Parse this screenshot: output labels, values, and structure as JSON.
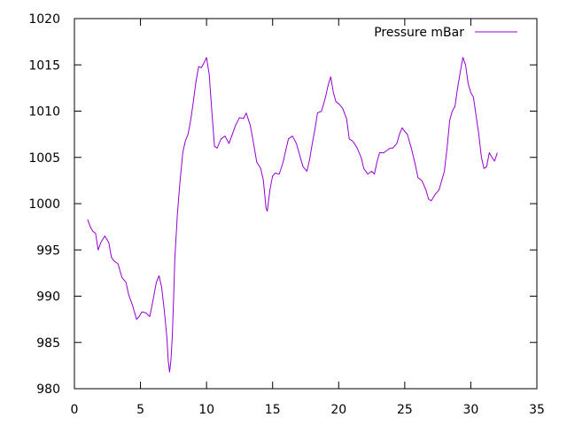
{
  "chart_data": {
    "type": "line",
    "title": "",
    "xlabel": "",
    "ylabel": "",
    "xlim": [
      0,
      35
    ],
    "ylim": [
      980,
      1020
    ],
    "x_ticks": [
      0,
      5,
      10,
      15,
      20,
      25,
      30,
      35
    ],
    "y_ticks": [
      980,
      985,
      990,
      995,
      1000,
      1005,
      1010,
      1015,
      1020
    ],
    "x_tick_labels": [
      "0",
      "5",
      "10",
      "15",
      "20",
      "25",
      "30",
      "35"
    ],
    "y_tick_labels": [
      "980",
      "985",
      "990",
      "995",
      "1000",
      "1005",
      "1010",
      "1015",
      "1020"
    ],
    "grid": false,
    "legend_position": "top-right",
    "series": [
      {
        "name": "Pressure mBar",
        "color": "#9400d3",
        "x": [
          1.0,
          1.2,
          1.4,
          1.6,
          1.8,
          2.0,
          2.3,
          2.6,
          2.8,
          3.0,
          3.3,
          3.6,
          3.9,
          4.1,
          4.4,
          4.7,
          4.9,
          5.1,
          5.4,
          5.7,
          5.9,
          6.2,
          6.4,
          6.6,
          6.8,
          7.0,
          7.1,
          7.2,
          7.3,
          7.4,
          7.5,
          7.6,
          7.8,
          8.0,
          8.2,
          8.4,
          8.6,
          8.8,
          9.0,
          9.2,
          9.4,
          9.6,
          9.8,
          10.0,
          10.2,
          10.4,
          10.6,
          10.8,
          11.1,
          11.4,
          11.7,
          11.9,
          12.2,
          12.5,
          12.8,
          13.0,
          13.3,
          13.5,
          13.8,
          14.1,
          14.3,
          14.5,
          14.6,
          14.8,
          15.0,
          15.2,
          15.5,
          15.8,
          16.0,
          16.2,
          16.5,
          16.8,
          17.0,
          17.3,
          17.6,
          17.8,
          18.0,
          18.2,
          18.4,
          18.7,
          19.0,
          19.2,
          19.4,
          19.6,
          19.8,
          20.0,
          20.3,
          20.6,
          20.8,
          21.1,
          21.4,
          21.7,
          21.9,
          22.2,
          22.5,
          22.7,
          22.9,
          23.1,
          23.4,
          23.7,
          23.9,
          24.1,
          24.4,
          24.6,
          24.8,
          25.0,
          25.2,
          25.5,
          25.8,
          26.0,
          26.3,
          26.6,
          26.8,
          27.0,
          27.3,
          27.6,
          27.8,
          28.0,
          28.2,
          28.4,
          28.6,
          28.8,
          29.0,
          29.2,
          29.4,
          29.6,
          29.8,
          30.0,
          30.2,
          30.4,
          30.6,
          30.8,
          31.0,
          31.2,
          31.4,
          31.6,
          31.8,
          32.0
        ],
        "values": [
          998.3,
          997.5,
          997.0,
          996.8,
          995.0,
          995.8,
          996.5,
          995.8,
          994.2,
          993.8,
          993.5,
          992.0,
          991.5,
          990.2,
          989.0,
          987.5,
          987.8,
          988.3,
          988.2,
          987.8,
          989.2,
          991.5,
          992.2,
          991.0,
          988.5,
          985.5,
          983.0,
          981.8,
          983.0,
          985.5,
          989.5,
          994.0,
          999.0,
          1002.5,
          1005.5,
          1006.8,
          1007.5,
          1009.0,
          1011.0,
          1013.2,
          1014.8,
          1014.7,
          1015.2,
          1015.8,
          1014.0,
          1010.0,
          1006.2,
          1006.0,
          1007.0,
          1007.3,
          1006.5,
          1007.3,
          1008.5,
          1009.3,
          1009.2,
          1009.8,
          1008.5,
          1007.0,
          1004.5,
          1003.8,
          1002.5,
          999.5,
          999.2,
          1001.5,
          1003.0,
          1003.3,
          1003.2,
          1004.5,
          1005.8,
          1007.0,
          1007.3,
          1006.5,
          1005.5,
          1004.0,
          1003.5,
          1004.8,
          1006.5,
          1008.0,
          1009.8,
          1010.0,
          1011.5,
          1012.8,
          1013.7,
          1012.0,
          1011.0,
          1010.8,
          1010.3,
          1009.2,
          1007.0,
          1006.7,
          1006.0,
          1005.0,
          1003.8,
          1003.2,
          1003.5,
          1003.2,
          1004.5,
          1005.5,
          1005.5,
          1005.8,
          1006.0,
          1006.0,
          1006.5,
          1007.5,
          1008.2,
          1007.8,
          1007.5,
          1006.0,
          1004.2,
          1002.8,
          1002.5,
          1001.5,
          1000.5,
          1000.3,
          1001.0,
          1001.5,
          1002.5,
          1003.5,
          1006.0,
          1009.0,
          1010.0,
          1010.5,
          1012.5,
          1014.2,
          1015.8,
          1015.0,
          1013.0,
          1012.0,
          1011.5,
          1009.5,
          1007.5,
          1005.0,
          1003.8,
          1004.0,
          1005.5,
          1005.0,
          1004.6,
          1005.5
        ]
      }
    ]
  }
}
